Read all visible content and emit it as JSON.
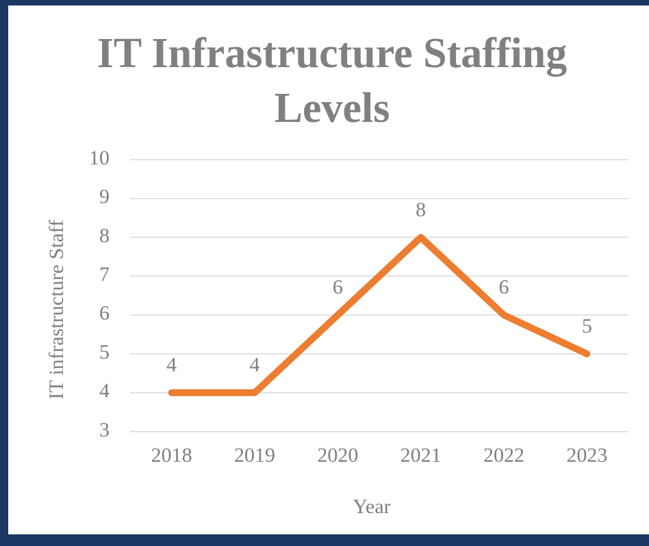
{
  "chart_data": {
    "type": "line",
    "title": "IT Infrastructure  Staffing Levels",
    "x_label": "Year",
    "y_label": "IT infrastructure Staff",
    "categories": [
      "2018",
      "2019",
      "2020",
      "2021",
      "2022",
      "2023"
    ],
    "series": [
      {
        "name": "IT infrastructure Staff",
        "color": "#ed7d31",
        "values": [
          4,
          4,
          6,
          8,
          6,
          5
        ]
      }
    ],
    "ylim": [
      3,
      10
    ],
    "yticks": [
      3,
      4,
      5,
      6,
      7,
      8,
      9,
      10
    ],
    "grid": true,
    "data_labels": true
  }
}
